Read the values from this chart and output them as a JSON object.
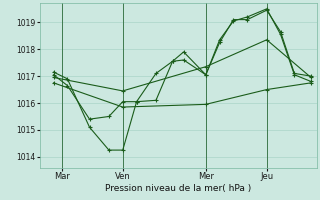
{
  "title": "Pression niveau de la mer( hPa )",
  "bg_color": "#cce8e0",
  "grid_color": "#b0d8cc",
  "line_color": "#1a5c1a",
  "xlim": [
    0,
    10
  ],
  "ylim": [
    1013.6,
    1019.7
  ],
  "yticks": [
    1014,
    1015,
    1016,
    1017,
    1018,
    1019
  ],
  "xtick_labels": [
    "Mar",
    "Ven",
    "Mer",
    "Jeu"
  ],
  "xtick_positions": [
    0.8,
    3.0,
    6.0,
    8.2
  ],
  "vlines": [
    0.8,
    3.0,
    6.0,
    8.2
  ],
  "series_volatile1": {
    "x": [
      0.5,
      1.0,
      1.8,
      2.5,
      3.0,
      3.5,
      4.2,
      4.8,
      5.2,
      6.0,
      6.5,
      7.0,
      7.5,
      8.2,
      8.7,
      9.2,
      9.8
    ],
    "y": [
      1017.15,
      1016.9,
      1015.1,
      1014.25,
      1014.25,
      1016.05,
      1016.1,
      1017.55,
      1017.6,
      1017.05,
      1018.35,
      1019.05,
      1019.2,
      1019.5,
      1018.55,
      1017.05,
      1016.8
    ]
  },
  "series_volatile2": {
    "x": [
      0.5,
      1.0,
      1.8,
      2.5,
      3.0,
      3.5,
      4.2,
      4.8,
      5.2,
      6.0,
      6.5,
      7.0,
      7.5,
      8.2,
      8.7,
      9.2,
      9.8
    ],
    "y": [
      1017.05,
      1016.65,
      1015.4,
      1015.5,
      1016.05,
      1016.05,
      1017.1,
      1017.55,
      1017.9,
      1017.05,
      1018.25,
      1019.1,
      1019.1,
      1019.45,
      1018.65,
      1017.1,
      1017.0
    ]
  },
  "series_slow1": {
    "x": [
      0.5,
      3.0,
      6.0,
      8.2,
      9.8
    ],
    "y": [
      1016.75,
      1015.85,
      1015.95,
      1016.5,
      1016.75
    ]
  },
  "series_slow2": {
    "x": [
      0.5,
      3.0,
      6.0,
      8.2,
      9.8
    ],
    "y": [
      1016.95,
      1016.45,
      1017.35,
      1018.35,
      1016.95
    ]
  }
}
